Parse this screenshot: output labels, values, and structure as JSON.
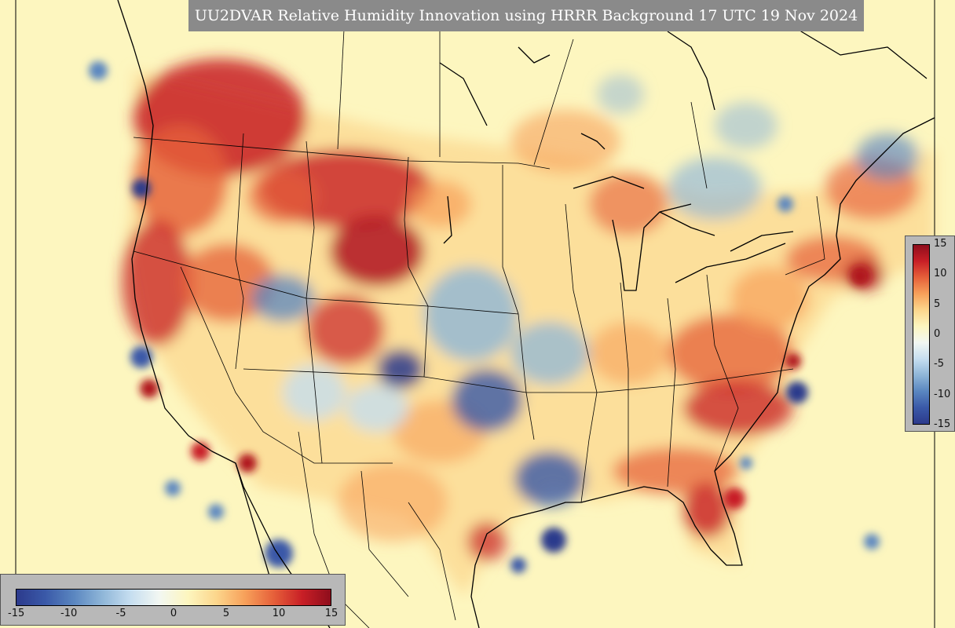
{
  "title": "UU2DVAR Relative Humidity Innovation using HRRR Background 17 UTC 19 Nov 2024",
  "colorbar": {
    "min": -15,
    "max": 15,
    "right_ticks": [
      "15",
      "10",
      "5",
      "0",
      "-5",
      "-10",
      "-15"
    ],
    "bottom_ticks": [
      "-15",
      "-10",
      "-5",
      "0",
      "5",
      "10",
      "15"
    ],
    "colors": [
      "#2c3a8c",
      "#3a59a8",
      "#5a86c0",
      "#8fb6d8",
      "#c6def0",
      "#f2f7f2",
      "#fdf6bf",
      "#fcd68c",
      "#f7a05a",
      "#e6603a",
      "#c81f26",
      "#8e0d1c"
    ]
  },
  "map": {
    "background_color": "#fdf6bf",
    "icons": [
      "coastline-icon",
      "state-border-icon"
    ]
  }
}
